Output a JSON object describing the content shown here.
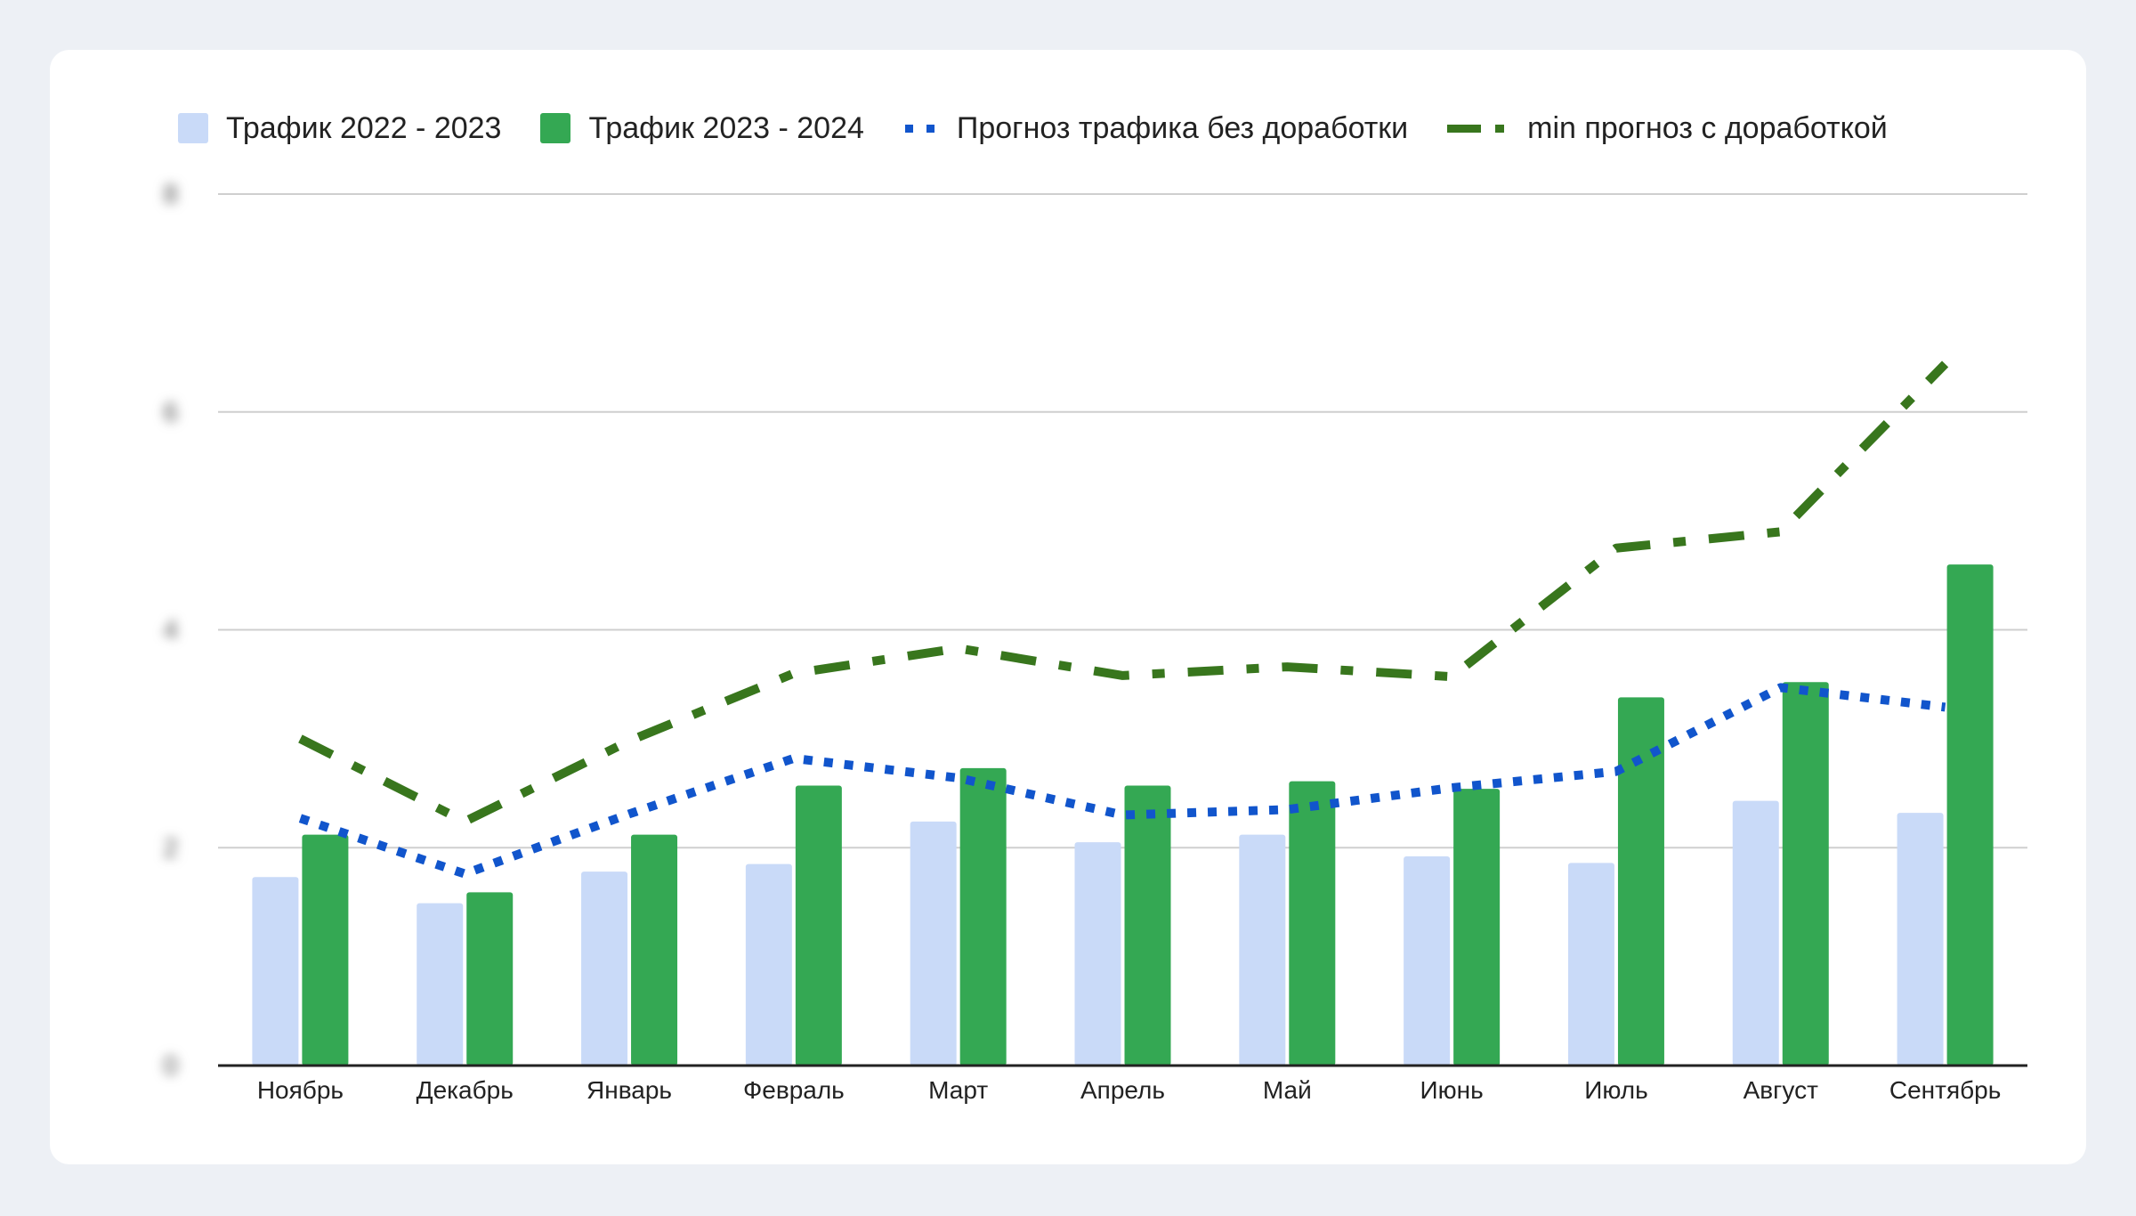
{
  "colors": {
    "background": "#edf0f5",
    "card": "#ffffff",
    "series1": "#c9daf8",
    "series2": "#34a853",
    "forecast_blue": "#1155cc",
    "forecast_green": "#38761d",
    "grid": "#cfcfcf",
    "axis": "#222222"
  },
  "legend": {
    "item1": "Трафик 2022 - 2023",
    "item2": "Трафик 2023 - 2024",
    "item3": "Прогноз трафика без доработки",
    "item4": "min прогноз с доработкой"
  },
  "chart_data": {
    "type": "bar",
    "categories": [
      "Ноябрь",
      "Декабрь",
      "Январь",
      "Февраль",
      "Март",
      "Апрель",
      "Май",
      "Июнь",
      "Июль",
      "Август",
      "Сентябрь"
    ],
    "ylim": [
      0,
      8
    ],
    "y_ticks": [
      0,
      2,
      4,
      6,
      8
    ],
    "y_ticks_blurred": true,
    "grid": true,
    "legend_position": "top",
    "series": [
      {
        "name": "Трафик 2022 - 2023",
        "kind": "bar",
        "color": "#c9daf8",
        "values": [
          1.73,
          1.49,
          1.78,
          1.85,
          2.24,
          2.05,
          2.12,
          1.92,
          1.86,
          2.43,
          2.32
        ]
      },
      {
        "name": "Трафик 2023 - 2024",
        "kind": "bar",
        "color": "#34a853",
        "values": [
          2.12,
          1.59,
          2.12,
          2.57,
          2.73,
          2.57,
          2.61,
          2.54,
          3.38,
          3.52,
          4.6
        ]
      },
      {
        "name": "Прогноз трафика без доработки",
        "kind": "line",
        "style": "dotted",
        "color": "#1155cc",
        "values": [
          2.27,
          1.76,
          2.31,
          2.82,
          2.64,
          2.3,
          2.35,
          2.55,
          2.7,
          3.47,
          3.29
        ]
      },
      {
        "name": "min прогноз с доработкой",
        "kind": "line",
        "style": "dash-dot",
        "color": "#38761d",
        "values": [
          3.0,
          2.24,
          2.98,
          3.6,
          3.83,
          3.58,
          3.66,
          3.57,
          4.75,
          4.9,
          6.44
        ]
      }
    ]
  }
}
